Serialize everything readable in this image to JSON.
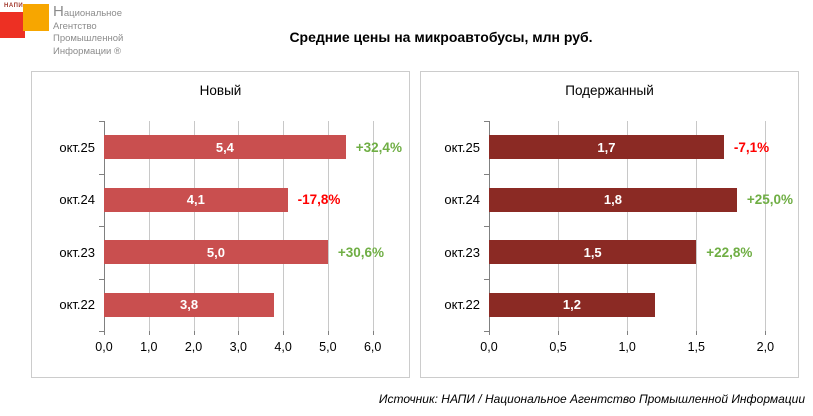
{
  "logo": {
    "mark_text": "НАПИ",
    "org_lines": [
      "Национальное",
      "Агентство",
      "Промышленной",
      "Информации ®"
    ],
    "red": "#ED3023",
    "orange": "#F7A600"
  },
  "title": "Средние цены на микроавтобусы, млн руб.",
  "source": "Источник: НАПИ / Национальное Агентство Промышленной Информации",
  "colors": {
    "positive_change": "#6FAE44",
    "negative_change": "#FF0000",
    "new_bar": "#C94F4F",
    "used_bar": "#8B2A24",
    "gridline": "#C8C8C8",
    "axis": "#808080"
  },
  "chart_data": [
    {
      "type": "bar",
      "orientation": "horizontal",
      "title": "Новый",
      "categories": [
        "окт.25",
        "окт.24",
        "окт.23",
        "окт.22"
      ],
      "values": [
        5.4,
        4.1,
        5.0,
        3.8
      ],
      "value_labels": [
        "5,4",
        "4,1",
        "5,0",
        "3,8"
      ],
      "change_labels": [
        "+32,4%",
        "-17,8%",
        "+30,6%",
        ""
      ],
      "change_signs": [
        "positive",
        "negative",
        "positive",
        ""
      ],
      "bar_color": "#C94F4F",
      "xlim": [
        0,
        6.7
      ],
      "x_tick_values": [
        0,
        1,
        2,
        3,
        4,
        5,
        6
      ],
      "x_ticks": [
        "0,0",
        "1,0",
        "2,0",
        "3,0",
        "4,0",
        "5,0",
        "6,0"
      ],
      "xlabel": "",
      "ylabel": "",
      "grid": true,
      "legend": false
    },
    {
      "type": "bar",
      "orientation": "horizontal",
      "title": "Подержанный",
      "categories": [
        "окт.25",
        "окт.24",
        "окт.23",
        "окт.22"
      ],
      "values": [
        1.7,
        1.8,
        1.5,
        1.2
      ],
      "value_labels": [
        "1,7",
        "1,8",
        "1,5",
        "1,2"
      ],
      "change_labels": [
        "-7,1%",
        "+25,0%",
        "+22,8%",
        ""
      ],
      "change_signs": [
        "negative",
        "positive",
        "positive",
        ""
      ],
      "bar_color": "#8B2A24",
      "xlim": [
        0,
        2.2
      ],
      "x_tick_values": [
        0,
        0.5,
        1,
        1.5,
        2
      ],
      "x_ticks": [
        "0,0",
        "0,5",
        "1,0",
        "1,5",
        "2,0"
      ],
      "xlabel": "",
      "ylabel": "",
      "grid": true,
      "legend": false
    }
  ]
}
